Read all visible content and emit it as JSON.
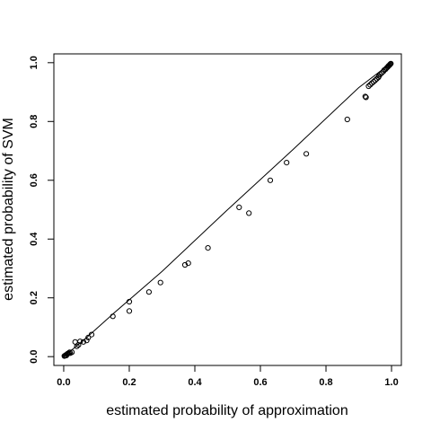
{
  "chart_data": {
    "type": "scatter",
    "title": "",
    "xlabel": "estimated probability of approximation",
    "ylabel": "estimated probability of SVM",
    "xlim": [
      -0.03,
      1.03
    ],
    "ylim": [
      -0.03,
      1.03
    ],
    "x_ticks": [
      0.0,
      0.2,
      0.4,
      0.6,
      0.8,
      1.0
    ],
    "x_tick_labels": [
      "0.0",
      "0.2",
      "0.4",
      "0.6",
      "0.8",
      "1.0"
    ],
    "y_ticks": [
      0.0,
      0.2,
      0.4,
      0.6,
      0.8,
      1.0
    ],
    "y_tick_labels": [
      "0.0",
      "0.2",
      "0.4",
      "0.6",
      "0.8",
      "1.0"
    ],
    "grid": false,
    "legend": "none",
    "marker": "open-circle",
    "reference_line": [
      [
        0.0,
        0.0
      ],
      [
        0.07,
        0.065
      ],
      [
        0.15,
        0.145
      ],
      [
        0.3,
        0.29
      ],
      [
        0.5,
        0.5
      ],
      [
        0.7,
        0.705
      ],
      [
        0.9,
        0.915
      ],
      [
        1.0,
        1.0
      ]
    ],
    "points": [
      [
        0.002,
        0.002
      ],
      [
        0.004,
        0.003
      ],
      [
        0.006,
        0.005
      ],
      [
        0.008,
        0.004
      ],
      [
        0.01,
        0.008
      ],
      [
        0.012,
        0.01
      ],
      [
        0.015,
        0.012
      ],
      [
        0.018,
        0.015
      ],
      [
        0.02,
        0.012
      ],
      [
        0.025,
        0.015
      ],
      [
        0.035,
        0.05
      ],
      [
        0.04,
        0.035
      ],
      [
        0.045,
        0.04
      ],
      [
        0.05,
        0.052
      ],
      [
        0.06,
        0.05
      ],
      [
        0.07,
        0.055
      ],
      [
        0.075,
        0.065
      ],
      [
        0.085,
        0.075
      ],
      [
        0.15,
        0.137
      ],
      [
        0.2,
        0.155
      ],
      [
        0.2,
        0.187
      ],
      [
        0.26,
        0.22
      ],
      [
        0.295,
        0.252
      ],
      [
        0.37,
        0.312
      ],
      [
        0.38,
        0.318
      ],
      [
        0.44,
        0.37
      ],
      [
        0.535,
        0.508
      ],
      [
        0.565,
        0.488
      ],
      [
        0.63,
        0.6
      ],
      [
        0.68,
        0.66
      ],
      [
        0.74,
        0.69
      ],
      [
        0.865,
        0.807
      ],
      [
        0.92,
        0.885
      ],
      [
        0.922,
        0.882
      ],
      [
        0.93,
        0.92
      ],
      [
        0.935,
        0.925
      ],
      [
        0.94,
        0.93
      ],
      [
        0.945,
        0.935
      ],
      [
        0.95,
        0.94
      ],
      [
        0.955,
        0.945
      ],
      [
        0.96,
        0.95
      ],
      [
        0.962,
        0.955
      ],
      [
        0.965,
        0.96
      ],
      [
        0.97,
        0.965
      ],
      [
        0.975,
        0.97
      ],
      [
        0.978,
        0.975
      ],
      [
        0.982,
        0.978
      ],
      [
        0.985,
        0.982
      ],
      [
        0.988,
        0.985
      ],
      [
        0.99,
        0.988
      ],
      [
        0.992,
        0.99
      ],
      [
        0.994,
        0.992
      ],
      [
        0.996,
        0.995
      ],
      [
        0.998,
        0.997
      ]
    ]
  }
}
